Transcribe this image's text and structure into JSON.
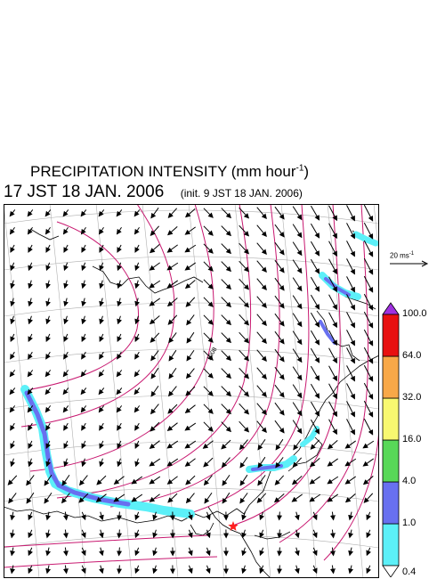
{
  "title": {
    "prefix": "PRECIPITATION INTENSITY (mm hour",
    "sup": "-1",
    "suffix": ")"
  },
  "valid_time": "17 JST 18 JAN. 2006",
  "init_time": "(init. 9 JST 18 JAN. 2006)",
  "vector_scale": {
    "value": "20 ms",
    "sup": "-1"
  },
  "contour_label": "1008",
  "colorbar": {
    "levels": [
      "0.4",
      "1.0",
      "4.0",
      "16.0",
      "32.0",
      "64.0",
      "100.0"
    ],
    "colors": [
      "#ffffff",
      "#5cf0f8",
      "#6870f0",
      "#58d858",
      "#f8f870",
      "#f8a848",
      "#e81010",
      "#a030e0"
    ]
  },
  "marker_color": "#ff2020",
  "isobar_color": "#c81870"
}
